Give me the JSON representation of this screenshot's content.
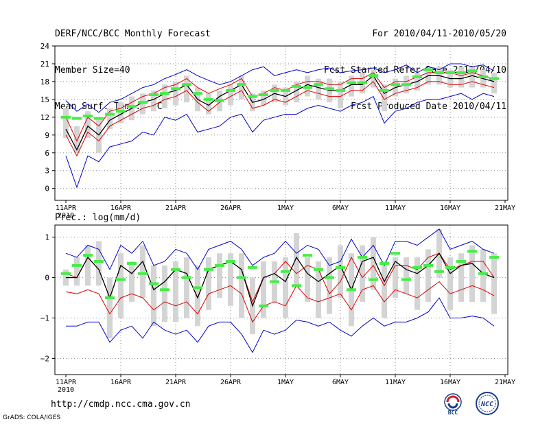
{
  "header": {
    "title": "DERF/NCC/BCC Monthly Forecast",
    "member_size": "Member Size=40",
    "variable": "Mean Surf. Temp.: °C",
    "period": "For 2010/04/11-2010/05/20",
    "refer_date": "Fcst Started Refer Date 2010/04/10",
    "produced_date": "Fcst Produced Date 2010/04/11"
  },
  "footer": {
    "url": "http://cmdp.ncc.cma.gov.cn",
    "credit": "GrADS: COLA/IGES",
    "logo_bcc": "BCC",
    "logo_ncc": "NCC"
  },
  "colors": {
    "max_line": "#0000cc",
    "min_line": "#0000cc",
    "mean_line": "#000000",
    "lower_line": "#dd0000",
    "upper_line": "#dd0000",
    "box": "#d4d4d4",
    "observed_marker": "#44ee44",
    "grid": "#888888"
  },
  "chart_data": [
    {
      "type": "line",
      "title": "Mean Surf. Temp.: °C",
      "x_tick_labels": [
        "11APR",
        "16APR",
        "21APR",
        "26APR",
        "1MAY",
        "6MAY",
        "11MAY",
        "16MAY",
        "21MAY"
      ],
      "x_sub_label": "2010",
      "xlim": [
        0,
        40
      ],
      "ylim": [
        -2,
        24
      ],
      "y_ticks": [
        0,
        3,
        6,
        9,
        12,
        15,
        18,
        21,
        24
      ],
      "y_tick_labels": [
        "0",
        "3",
        "6",
        "9",
        "12",
        "15",
        "18",
        "21",
        "24"
      ],
      "days": [
        0,
        1,
        2,
        3,
        4,
        5,
        6,
        7,
        8,
        9,
        10,
        11,
        12,
        13,
        14,
        15,
        16,
        17,
        18,
        19,
        20,
        21,
        22,
        23,
        24,
        25,
        26,
        27,
        28,
        29,
        30,
        31,
        32,
        33,
        34,
        35,
        36,
        37,
        38,
        39
      ],
      "series": [
        {
          "name": "max",
          "values": [
            14.8,
            13.0,
            14.2,
            12.8,
            14.5,
            15.0,
            16.0,
            17.0,
            17.5,
            18.5,
            19.2,
            20.0,
            19.0,
            18.2,
            17.5,
            18.0,
            19.0,
            20.0,
            20.5,
            19.0,
            19.5,
            20.0,
            19.5,
            20.0,
            20.3,
            19.5,
            19.8,
            20.0,
            20.3,
            19.5,
            20.0,
            20.8,
            19.5,
            20.5,
            20.0,
            21.0,
            21.0,
            20.5,
            20.8,
            19.8
          ]
        },
        {
          "name": "upper",
          "values": [
            12.0,
            8.0,
            12.0,
            10.5,
            13.0,
            13.5,
            14.5,
            15.5,
            16.0,
            17.0,
            17.5,
            18.5,
            17.0,
            16.0,
            16.8,
            17.5,
            18.5,
            15.5,
            16.0,
            17.0,
            16.5,
            17.5,
            18.0,
            18.0,
            17.5,
            17.5,
            18.5,
            18.5,
            19.5,
            17.0,
            18.0,
            18.0,
            18.8,
            19.5,
            19.5,
            19.5,
            19.0,
            19.5,
            19.0,
            18.5
          ]
        },
        {
          "name": "mean",
          "values": [
            10.0,
            6.5,
            10.5,
            9.0,
            11.5,
            12.5,
            13.5,
            14.5,
            15.0,
            16.0,
            16.5,
            17.5,
            15.0,
            14.0,
            15.5,
            16.5,
            17.5,
            14.5,
            15.0,
            16.0,
            15.5,
            16.5,
            17.5,
            17.0,
            16.5,
            16.5,
            17.5,
            17.5,
            19.0,
            16.0,
            17.0,
            17.5,
            18.0,
            19.0,
            19.0,
            18.5,
            18.5,
            19.0,
            18.5,
            18.0
          ]
        },
        {
          "name": "lower",
          "values": [
            9.0,
            5.5,
            9.5,
            8.0,
            10.5,
            11.5,
            12.5,
            13.5,
            14.0,
            15.0,
            15.5,
            16.5,
            14.5,
            13.0,
            14.5,
            15.5,
            16.5,
            13.5,
            14.0,
            15.0,
            14.5,
            15.5,
            16.5,
            16.0,
            15.5,
            15.5,
            16.5,
            16.5,
            18.0,
            15.0,
            16.0,
            16.5,
            17.0,
            18.0,
            18.0,
            17.5,
            17.5,
            18.0,
            17.5,
            17.0
          ]
        },
        {
          "name": "min",
          "values": [
            5.5,
            0.2,
            5.5,
            4.5,
            7.0,
            7.5,
            8.0,
            9.5,
            9.0,
            12.0,
            11.5,
            12.5,
            9.5,
            10.0,
            10.5,
            12.0,
            12.5,
            9.5,
            11.5,
            12.0,
            12.5,
            12.5,
            13.5,
            14.0,
            13.5,
            13.0,
            14.0,
            14.5,
            15.5,
            11.0,
            13.0,
            13.5,
            14.5,
            15.0,
            15.0,
            15.5,
            16.0,
            15.0,
            16.0,
            15.5
          ]
        }
      ],
      "boxes": {
        "low": [
          8.5,
          6.0,
          8.5,
          6.0,
          10.0,
          11.0,
          11.5,
          12.5,
          13.0,
          13.5,
          14.0,
          14.5,
          13.0,
          12.5,
          13.0,
          14.0,
          15.0,
          13.0,
          14.0,
          14.5,
          14.0,
          14.5,
          15.5,
          15.0,
          14.5,
          13.5,
          15.5,
          16.0,
          17.0,
          13.0,
          15.5,
          16.0,
          16.5,
          17.5,
          17.5,
          17.0,
          17.0,
          17.0,
          17.0,
          16.0
        ],
        "high": [
          13.5,
          10.5,
          13.0,
          12.0,
          13.5,
          14.5,
          15.5,
          16.0,
          16.5,
          17.5,
          18.0,
          19.0,
          17.0,
          16.0,
          16.5,
          17.5,
          19.0,
          16.0,
          16.5,
          17.5,
          17.0,
          18.0,
          19.0,
          18.5,
          18.5,
          18.0,
          19.0,
          19.5,
          20.0,
          17.5,
          18.5,
          19.0,
          19.5,
          20.5,
          20.5,
          20.0,
          20.5,
          20.5,
          20.0,
          19.5
        ]
      },
      "observed": [
        12.0,
        11.8,
        12.2,
        11.8,
        12.5,
        13.0,
        13.8,
        14.5,
        15.8,
        16.0,
        16.8,
        17.5,
        16.0,
        15.0,
        14.8,
        16.5,
        17.5,
        15.5,
        15.8,
        16.5,
        16.5,
        17.2,
        17.0,
        17.5,
        16.8,
        16.5,
        17.8,
        17.8,
        19.0,
        16.5,
        17.5,
        17.5,
        18.8,
        20.0,
        19.5,
        19.5,
        19.5,
        19.8,
        18.8,
        18.5
      ]
    },
    {
      "type": "line",
      "title": "Prec.: log(mm/d)",
      "x_tick_labels": [
        "11APR",
        "16APR",
        "21APR",
        "26APR",
        "1MAY",
        "6MAY",
        "11MAY",
        "16MAY",
        "21MAY"
      ],
      "x_sub_label": "2010",
      "xlim": [
        0,
        40
      ],
      "ylim": [
        -2.4,
        1.3
      ],
      "y_ticks": [
        -2,
        -1,
        0,
        1
      ],
      "y_tick_labels": [
        "−2",
        "−1",
        "0",
        "1"
      ],
      "days": [
        0,
        1,
        2,
        3,
        4,
        5,
        6,
        7,
        8,
        9,
        10,
        11,
        12,
        13,
        14,
        15,
        16,
        17,
        18,
        19,
        20,
        21,
        22,
        23,
        24,
        25,
        26,
        27,
        28,
        29,
        30,
        31,
        32,
        33,
        34,
        35,
        36,
        37,
        38,
        39
      ],
      "series": [
        {
          "name": "max",
          "values": [
            0.6,
            0.5,
            0.8,
            0.7,
            0.2,
            0.8,
            0.6,
            0.9,
            0.3,
            0.4,
            0.7,
            0.6,
            0.2,
            0.7,
            0.8,
            0.9,
            0.7,
            0.3,
            0.5,
            0.6,
            0.9,
            0.6,
            0.8,
            0.7,
            0.3,
            0.4,
            0.95,
            0.5,
            0.8,
            0.3,
            0.9,
            0.9,
            0.8,
            1.0,
            1.2,
            0.7,
            0.8,
            0.9,
            0.7,
            0.6
          ]
        },
        {
          "name": "upper",
          "values": [
            0.1,
            0.0,
            0.5,
            0.2,
            -0.5,
            0.3,
            0.1,
            0.4,
            -0.3,
            -0.1,
            0.2,
            0.1,
            -0.5,
            0.2,
            0.3,
            0.4,
            0.2,
            -0.6,
            0.0,
            0.1,
            0.4,
            0.1,
            0.3,
            0.2,
            -0.4,
            -0.1,
            0.5,
            0.0,
            0.3,
            -0.2,
            0.3,
            0.3,
            0.2,
            0.5,
            0.6,
            0.2,
            0.3,
            0.4,
            0.4,
            0.0
          ]
        },
        {
          "name": "mean",
          "values": [
            0.0,
            0.0,
            0.5,
            0.2,
            -0.5,
            0.3,
            0.1,
            0.4,
            -0.3,
            -0.1,
            0.2,
            0.1,
            -0.5,
            0.2,
            0.3,
            0.4,
            0.2,
            -0.7,
            0.0,
            0.1,
            -0.1,
            0.5,
            0.1,
            -0.1,
            0.1,
            0.3,
            -0.3,
            0.4,
            0.5,
            -0.1,
            0.4,
            0.2,
            0.1,
            0.3,
            0.6,
            0.1,
            0.3,
            0.35,
            0.1,
            0.0
          ]
        },
        {
          "name": "lower",
          "values": [
            -0.35,
            -0.4,
            -0.3,
            -0.4,
            -0.9,
            -0.5,
            -0.4,
            -0.5,
            -0.8,
            -0.6,
            -0.7,
            -0.6,
            -0.9,
            -0.4,
            -0.3,
            -0.2,
            -0.4,
            -1.1,
            -0.7,
            -0.6,
            -0.7,
            -0.2,
            -0.5,
            -0.6,
            -0.5,
            -0.4,
            -0.8,
            -0.3,
            -0.2,
            -0.6,
            -0.3,
            -0.4,
            -0.5,
            -0.3,
            -0.1,
            -0.4,
            -0.3,
            -0.2,
            -0.3,
            -0.45
          ]
        },
        {
          "name": "min",
          "values": [
            -1.2,
            -1.2,
            -1.1,
            -1.1,
            -1.6,
            -1.3,
            -1.2,
            -1.5,
            -1.1,
            -1.3,
            -1.4,
            -1.3,
            -1.6,
            -1.2,
            -1.1,
            -1.1,
            -1.4,
            -1.85,
            -1.3,
            -1.4,
            -1.3,
            -1.05,
            -1.1,
            -1.2,
            -1.1,
            -1.3,
            -1.45,
            -1.2,
            -1.0,
            -1.2,
            -1.1,
            -1.1,
            -1.0,
            -0.85,
            -0.5,
            -1.0,
            -1.0,
            -0.95,
            -1.0,
            -1.2
          ]
        }
      ],
      "boxes": {
        "low": [
          -0.2,
          -0.2,
          -0.2,
          -0.2,
          -1.5,
          -1.0,
          -0.6,
          -0.5,
          -1.2,
          -1.1,
          -1.1,
          -1.0,
          -1.2,
          -0.8,
          -0.5,
          -0.7,
          -1.0,
          -1.4,
          -1.0,
          -0.6,
          -1.0,
          -0.2,
          -0.6,
          -1.0,
          -0.9,
          -0.5,
          -1.2,
          -0.6,
          -0.3,
          -1.0,
          -0.5,
          -0.4,
          -0.8,
          -0.6,
          0.0,
          -0.8,
          -0.6,
          -0.6,
          -0.6,
          -0.9
        ],
        "high": [
          0.2,
          0.5,
          0.8,
          0.9,
          0.0,
          0.6,
          0.4,
          0.8,
          0.3,
          0.3,
          0.4,
          0.5,
          0.3,
          0.5,
          0.6,
          0.6,
          0.6,
          0.0,
          0.4,
          0.4,
          0.5,
          1.1,
          0.5,
          0.4,
          0.5,
          0.8,
          0.6,
          0.8,
          1.0,
          0.4,
          0.5,
          0.5,
          0.5,
          0.7,
          1.2,
          0.5,
          0.6,
          0.8,
          0.7,
          0.6
        ]
      },
      "observed": [
        0.1,
        0.3,
        0.55,
        0.4,
        -0.5,
        -0.05,
        0.35,
        0.1,
        -0.15,
        -0.3,
        0.2,
        0.0,
        -0.25,
        0.2,
        0.3,
        0.4,
        0.0,
        0.25,
        -0.7,
        -0.1,
        0.15,
        -0.2,
        0.55,
        0.2,
        0.0,
        0.25,
        -0.3,
        0.5,
        -0.05,
        0.35,
        0.6,
        -0.05,
        0.25,
        0.3,
        0.15,
        0.25,
        0.4,
        0.65,
        0.1,
        0.5
      ]
    }
  ]
}
